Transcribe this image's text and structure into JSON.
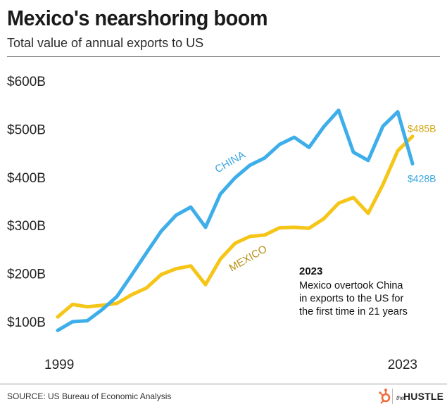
{
  "header": {
    "title": "Mexico's nearshoring boom",
    "subtitle": "Total value of annual exports to US"
  },
  "chart_data": {
    "type": "line",
    "title": "Mexico's nearshoring boom",
    "subtitle": "Total value of annual exports to US",
    "x": [
      1999,
      2000,
      2001,
      2002,
      2003,
      2004,
      2005,
      2006,
      2007,
      2008,
      2009,
      2010,
      2011,
      2012,
      2013,
      2014,
      2015,
      2016,
      2017,
      2018,
      2019,
      2020,
      2021,
      2022,
      2023
    ],
    "series": [
      {
        "name": "CHINA",
        "color": "#3daee9",
        "values": [
          82,
          100,
          102,
          125,
          152,
          197,
          243,
          288,
          321,
          338,
          296,
          365,
          399,
          425,
          440,
          468,
          483,
          462,
          505,
          539,
          452,
          435,
          506,
          536,
          428
        ]
      },
      {
        "name": "MEXICO",
        "color": "#f5c518",
        "values": [
          110,
          136,
          131,
          134,
          138,
          156,
          170,
          198,
          210,
          216,
          177,
          230,
          263,
          277,
          280,
          295,
          296,
          294,
          314,
          346,
          358,
          325,
          385,
          455,
          485
        ]
      }
    ],
    "ylim": [
      80,
      610
    ],
    "y_ticks": [
      100,
      200,
      300,
      400,
      500,
      600
    ],
    "y_tick_labels": [
      "$100B",
      "$200B",
      "$300B",
      "$400B",
      "$500B",
      "$600B"
    ],
    "x_tick_labels": [
      "1999",
      "2023"
    ],
    "end_labels": {
      "CHINA": "$428B",
      "MEXICO": "$485B"
    },
    "annotation": {
      "heading": "2023",
      "lines": [
        "Mexico overtook China",
        "in exports to the US for",
        "the first time in 21 years"
      ]
    },
    "grid": false,
    "legend": "inline labels"
  },
  "footer": {
    "source": "SOURCE: US Bureau of Economic Analysis",
    "brand_small": "the",
    "brand": "HUSTLE",
    "brand_color": "#f26b3a"
  }
}
